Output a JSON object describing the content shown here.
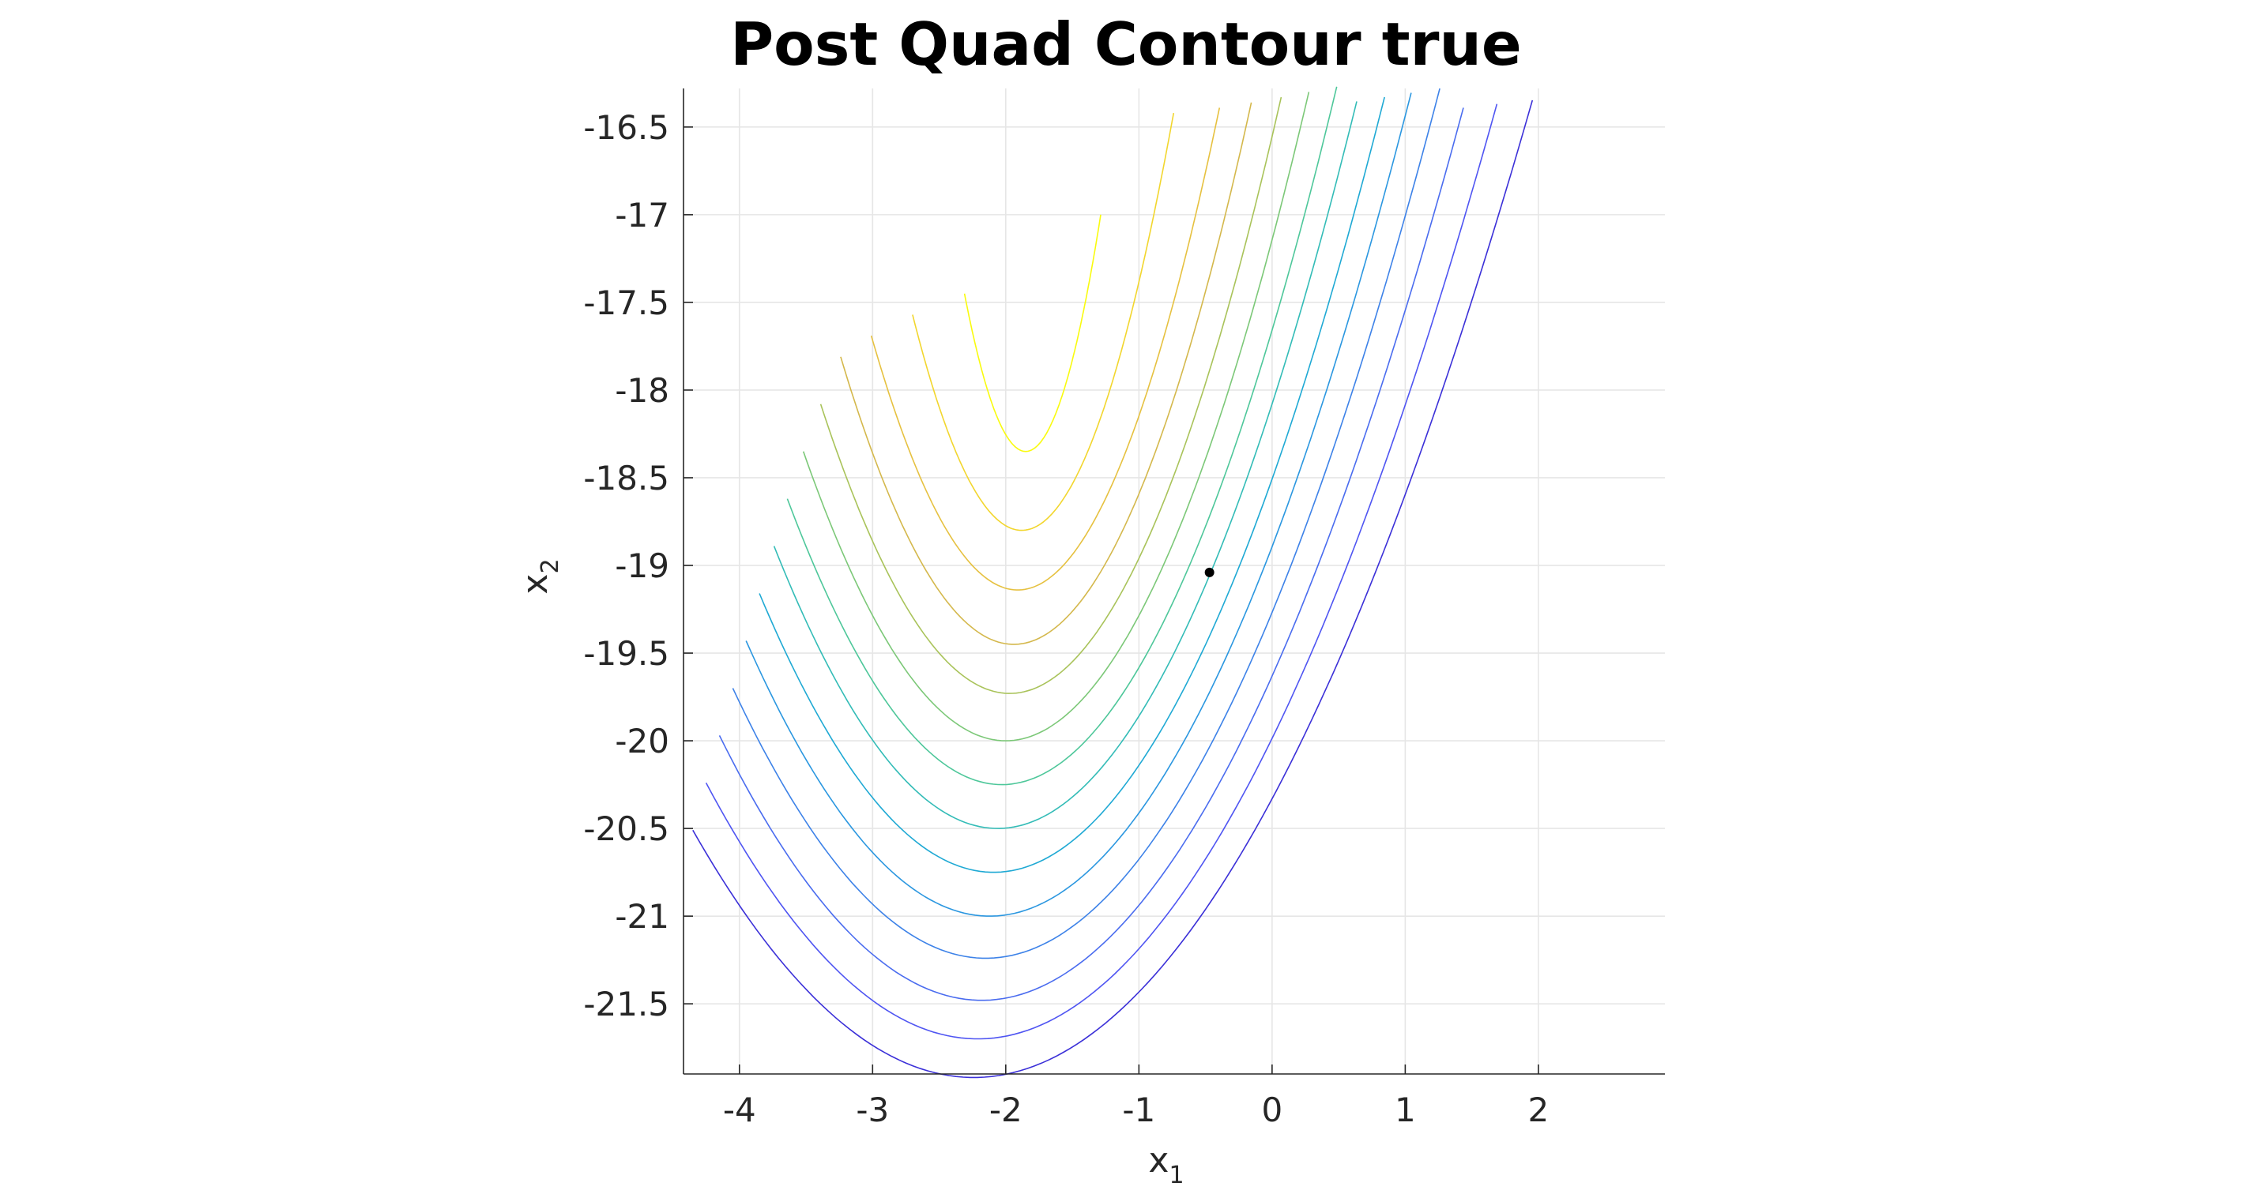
{
  "chart_data": {
    "type": "contour",
    "title": "Post Quad Contour true",
    "xlabel": "x",
    "xlabel_subscript": "1",
    "ylabel": "x",
    "ylabel_subscript": "2",
    "xlim": [
      -4.42,
      2.95
    ],
    "ylim": [
      -21.9,
      -16.28
    ],
    "xticks": [
      -4,
      -3,
      -2,
      -1,
      0,
      1,
      2
    ],
    "xtick_labels": [
      "-4",
      "-3",
      "-2",
      "-1",
      "0",
      "1",
      "2"
    ],
    "yticks": [
      -16.5,
      -17,
      -17.5,
      -18,
      -18.5,
      -19,
      -19.5,
      -20,
      -20.5,
      -21,
      -21.5
    ],
    "ytick_labels": [
      "-16.5",
      "-17",
      "-17.5",
      "-18",
      "-18.5",
      "-19",
      "-19.5",
      "-20",
      "-20.5",
      "-21",
      "-21.5"
    ],
    "grid": true,
    "colormap": "parula",
    "marker": {
      "x": -0.47,
      "y": -19.04,
      "color": "#000000"
    },
    "contour_vertex": {
      "x": -1.6,
      "y": -16.3
    },
    "contour_levels": [
      {
        "x1": -2.31,
        "apex_y": -18.35,
        "color": "#f9fb0e",
        "clip": null
      },
      {
        "x1": -2.7,
        "apex_y": -18.8,
        "color": "#f2d62e",
        "clip": null
      },
      {
        "x1": -3.01,
        "apex_y": -19.14,
        "color": "#e6c140",
        "clip": null
      },
      {
        "x1": -3.24,
        "apex_y": -19.45,
        "color": "#d4b84c",
        "clip": null
      },
      {
        "x1": -3.39,
        "apex_y": -19.73,
        "color": "#a9c35a",
        "clip": null
      },
      {
        "x1": -3.52,
        "apex_y": -20.0,
        "color": "#7cc878",
        "clip": null
      },
      {
        "x1": -3.64,
        "apex_y": -20.25,
        "color": "#4ec79a",
        "clip": null
      },
      {
        "x1": -3.74,
        "apex_y": -20.5,
        "color": "#33bcb7",
        "clip": null
      },
      {
        "x1": -3.85,
        "apex_y": -20.75,
        "color": "#1fa9d4",
        "clip": null
      },
      {
        "x1": -3.95,
        "apex_y": -21.0,
        "color": "#2b97e0",
        "clip": [
          -0.5,
          -21.1
        ]
      },
      {
        "x1": -4.05,
        "apex_y": -21.24,
        "color": "#3d82e8",
        "clip": [
          0.2,
          -20.95
        ]
      },
      {
        "x1": -4.15,
        "apex_y": -21.48,
        "color": "#4a6cef",
        "clip": [
          0.72,
          -20.84
        ]
      },
      {
        "x1": -4.25,
        "apex_y": -21.7,
        "color": "#4f55f2",
        "clip": [
          1.18,
          -20.73
        ]
      },
      {
        "x1": -4.35,
        "apex_y": -21.92,
        "color": "#3b30d8",
        "clip": [
          2.78,
          -16.97
        ]
      }
    ]
  }
}
